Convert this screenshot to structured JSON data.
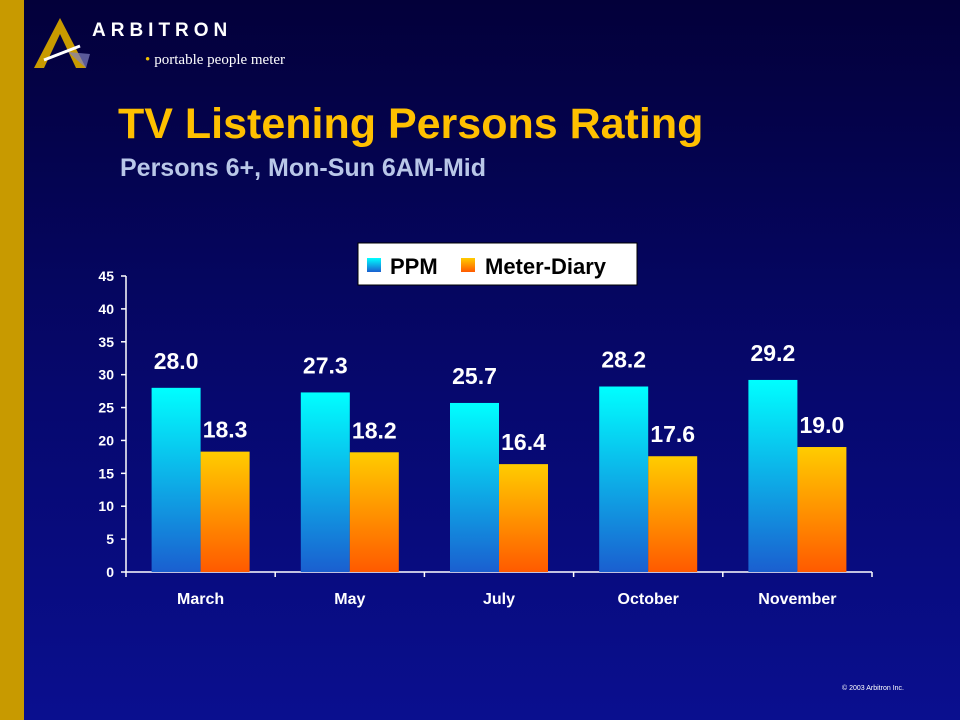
{
  "header": {
    "brand": "ARBITRON",
    "tagline": "portable people meter",
    "title": "TV Listening Persons Rating",
    "subtitle": "Persons 6+, Mon-Sun 6AM-Mid",
    "copyright": "© 2003 Arbitron Inc."
  },
  "colors": {
    "sidebar": "#c89a00",
    "title": "#ffc000",
    "subtitle": "#b9c7e8",
    "ppm_top": "#00ffff",
    "ppm_bottom": "#1a5fd0",
    "meter_top": "#ffcc00",
    "meter_bottom": "#ff5a00"
  },
  "chart_data": {
    "type": "bar",
    "categories": [
      "March",
      "May",
      "July",
      "October",
      "November"
    ],
    "series": [
      {
        "name": "PPM",
        "values": [
          28.0,
          27.3,
          25.7,
          28.2,
          29.2
        ]
      },
      {
        "name": "Meter-Diary",
        "values": [
          18.3,
          18.2,
          16.4,
          17.6,
          19.0
        ]
      }
    ],
    "data_labels": [
      [
        "28.0",
        "27.3",
        "25.7",
        "28.2",
        "29.2"
      ],
      [
        "18.3",
        "18.2",
        "16.4",
        "17.6",
        "19.0"
      ]
    ],
    "yticks": [
      "0",
      "5",
      "10",
      "15",
      "20",
      "25",
      "30",
      "35",
      "40",
      "45"
    ],
    "ylim": [
      0,
      45
    ],
    "legend_position": "top",
    "grid": false
  }
}
